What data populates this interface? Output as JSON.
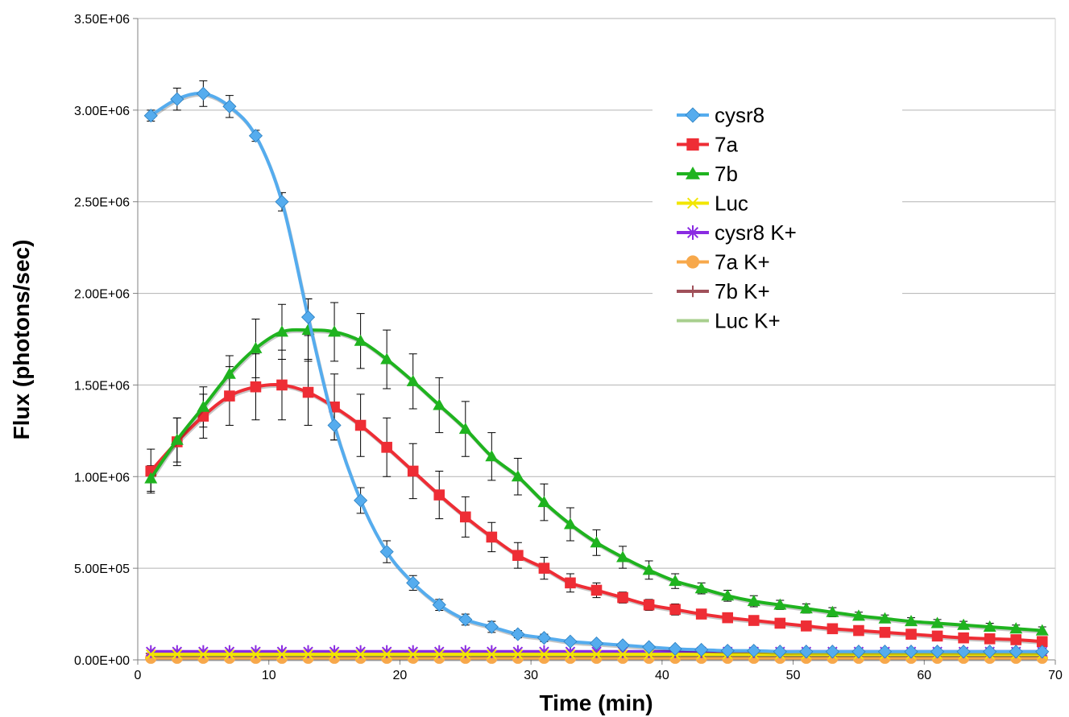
{
  "chart_data": {
    "type": "line",
    "title": "",
    "xlabel": "Time (min)",
    "ylabel": "Flux (photons/sec)",
    "xlim": [
      0,
      70
    ],
    "ylim": [
      0,
      3500000
    ],
    "x_ticks": [
      0,
      10,
      20,
      30,
      40,
      50,
      60,
      70
    ],
    "x_tick_labels": [
      "0",
      "10",
      "20",
      "30",
      "40",
      "50",
      "60",
      "70"
    ],
    "y_ticks": [
      0,
      500000,
      1000000,
      1500000,
      2000000,
      2500000,
      3000000,
      3500000
    ],
    "y_tick_labels": [
      "0.00E+00",
      "5.00E+05",
      "1.00E+06",
      "1.50E+06",
      "2.00E+06",
      "2.50E+06",
      "3.00E+06",
      "3.50E+06"
    ],
    "grid": "horizontal",
    "legend_position": "top-right",
    "x": [
      1,
      3,
      5,
      7,
      9,
      11,
      13,
      15,
      17,
      19,
      21,
      23,
      25,
      27,
      29,
      31,
      33,
      35,
      37,
      39,
      41,
      43,
      45,
      47,
      49,
      51,
      53,
      55,
      57,
      59,
      61,
      63,
      65,
      67,
      69
    ],
    "series": [
      {
        "name": "cysr8",
        "color": "#55acee",
        "marker": "diamond",
        "values": [
          2970000,
          3060000,
          3090000,
          3020000,
          2860000,
          2500000,
          1870000,
          1280000,
          870000,
          590000,
          420000,
          300000,
          220000,
          180000,
          140000,
          120000,
          100000,
          90000,
          80000,
          70000,
          60000,
          55000,
          50000,
          50000,
          45000,
          45000,
          45000,
          45000,
          45000,
          45000,
          45000,
          45000,
          45000,
          45000,
          45000
        ],
        "errors": [
          30000,
          60000,
          70000,
          60000,
          30000,
          50000,
          100000,
          80000,
          70000,
          60000,
          40000,
          30000,
          30000,
          30000,
          20000,
          20000,
          10000,
          10000,
          10000,
          10000,
          10000,
          5000,
          5000,
          5000,
          5000,
          5000,
          5000,
          5000,
          5000,
          5000,
          5000,
          5000,
          5000,
          5000,
          5000
        ]
      },
      {
        "name": "7a",
        "color": "#ee2d35",
        "marker": "square",
        "values": [
          1030000,
          1190000,
          1330000,
          1440000,
          1490000,
          1500000,
          1460000,
          1380000,
          1280000,
          1160000,
          1030000,
          900000,
          780000,
          670000,
          570000,
          500000,
          420000,
          380000,
          340000,
          300000,
          275000,
          250000,
          230000,
          215000,
          200000,
          185000,
          170000,
          160000,
          150000,
          140000,
          130000,
          120000,
          115000,
          110000,
          100000
        ],
        "errors": [
          120000,
          130000,
          120000,
          160000,
          180000,
          190000,
          180000,
          180000,
          170000,
          160000,
          150000,
          130000,
          110000,
          80000,
          70000,
          60000,
          50000,
          40000,
          30000,
          30000,
          30000,
          25000,
          20000,
          20000,
          20000,
          20000,
          20000,
          20000,
          20000,
          20000,
          20000,
          20000,
          20000,
          20000,
          20000
        ]
      },
      {
        "name": "7b",
        "color": "#1fb31f",
        "marker": "triangle",
        "values": [
          990000,
          1200000,
          1380000,
          1560000,
          1700000,
          1790000,
          1800000,
          1790000,
          1740000,
          1640000,
          1520000,
          1390000,
          1260000,
          1110000,
          1000000,
          860000,
          740000,
          640000,
          560000,
          490000,
          430000,
          390000,
          350000,
          320000,
          300000,
          280000,
          260000,
          240000,
          225000,
          210000,
          200000,
          190000,
          180000,
          170000,
          160000
        ],
        "errors": [
          70000,
          120000,
          110000,
          100000,
          160000,
          150000,
          170000,
          160000,
          150000,
          160000,
          150000,
          150000,
          150000,
          130000,
          100000,
          100000,
          90000,
          70000,
          60000,
          50000,
          40000,
          30000,
          30000,
          30000,
          25000,
          25000,
          25000,
          20000,
          20000,
          20000,
          20000,
          20000,
          20000,
          20000,
          20000
        ]
      },
      {
        "name": "Luc",
        "color": "#f2e600",
        "marker": "x",
        "values": [
          30000,
          30000,
          30000,
          30000,
          30000,
          30000,
          30000,
          30000,
          30000,
          30000,
          30000,
          30000,
          30000,
          30000,
          30000,
          30000,
          30000,
          30000,
          30000,
          30000,
          30000,
          30000,
          30000,
          30000,
          30000,
          30000,
          30000,
          30000,
          30000,
          30000,
          30000,
          30000,
          30000,
          30000,
          30000
        ]
      },
      {
        "name": "cysr8 K+",
        "color": "#8a2be2",
        "marker": "asterisk",
        "values": [
          45000,
          45000,
          45000,
          45000,
          45000,
          45000,
          45000,
          45000,
          45000,
          45000,
          45000,
          45000,
          45000,
          45000,
          45000,
          45000,
          45000,
          45000,
          45000,
          45000,
          45000,
          45000,
          45000,
          45000,
          45000,
          45000,
          45000,
          45000,
          45000,
          45000,
          45000,
          45000,
          45000,
          45000,
          45000
        ]
      },
      {
        "name": "7a K+",
        "color": "#f7a84b",
        "marker": "circle",
        "values": [
          10000,
          10000,
          10000,
          10000,
          10000,
          10000,
          10000,
          10000,
          10000,
          10000,
          10000,
          10000,
          10000,
          10000,
          10000,
          10000,
          10000,
          10000,
          10000,
          10000,
          10000,
          10000,
          10000,
          10000,
          10000,
          10000,
          10000,
          10000,
          10000,
          10000,
          10000,
          10000,
          10000,
          10000,
          10000
        ]
      },
      {
        "name": "7b K+",
        "color": "#a0505a",
        "marker": "plus",
        "values": [
          35000,
          35000,
          35000,
          35000,
          35000,
          35000,
          35000,
          35000,
          35000,
          35000,
          35000,
          35000,
          35000,
          35000,
          35000,
          35000,
          35000,
          35000,
          35000,
          35000,
          35000,
          35000,
          35000,
          35000,
          35000,
          35000,
          35000,
          35000,
          35000,
          35000,
          35000,
          35000,
          35000,
          35000,
          35000
        ]
      },
      {
        "name": "Luc K+",
        "color": "#a8cf8e",
        "marker": "none",
        "values": [
          20000,
          20000,
          20000,
          20000,
          20000,
          20000,
          20000,
          20000,
          20000,
          20000,
          20000,
          20000,
          20000,
          20000,
          20000,
          20000,
          20000,
          20000,
          20000,
          20000,
          20000,
          20000,
          20000,
          20000,
          20000,
          20000,
          20000,
          20000,
          20000,
          20000,
          20000,
          20000,
          20000,
          20000,
          20000
        ]
      }
    ]
  }
}
